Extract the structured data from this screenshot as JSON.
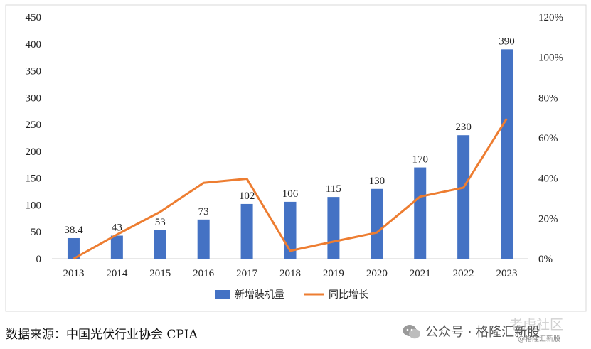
{
  "chart_data": {
    "type": "bar",
    "categories": [
      "2013",
      "2014",
      "2015",
      "2016",
      "2017",
      "2018",
      "2019",
      "2020",
      "2021",
      "2022",
      "2023"
    ],
    "series": [
      {
        "name": "新增装机量",
        "type": "bar",
        "axis": "left",
        "color": "#4472C4",
        "values": [
          38.4,
          43,
          53,
          73,
          102,
          106,
          115,
          130,
          170,
          230,
          390
        ],
        "labels": [
          "38.4",
          "43",
          "53",
          "73",
          "102",
          "106",
          "115",
          "130",
          "170",
          "230",
          "390"
        ]
      },
      {
        "name": "同比增长",
        "type": "line",
        "axis": "right",
        "color": "#ED7D31",
        "values": [
          0.0,
          12.0,
          23.3,
          37.7,
          39.7,
          3.9,
          8.5,
          13.0,
          30.8,
          35.3,
          69.6
        ]
      }
    ],
    "ylim": [
      0,
      450
    ],
    "y_ticks": [
      "0",
      "50",
      "100",
      "150",
      "200",
      "250",
      "300",
      "350",
      "400",
      "450"
    ],
    "y2lim": [
      0,
      120
    ],
    "y2_ticks": [
      "0%",
      "20%",
      "40%",
      "60%",
      "80%",
      "100%",
      "120%"
    ],
    "legend": "bottom",
    "grid": false
  },
  "footer": {
    "source": "数据来源：中国光伏行业协会 CPIA"
  },
  "watermark": {
    "text": "公众号 · 格隆汇新股",
    "ghost": "老虎社区",
    "small": "@格隆汇新股"
  },
  "colors": {
    "bar": "#4472C4",
    "line": "#ED7D31",
    "axis": "#d0d0d0"
  }
}
